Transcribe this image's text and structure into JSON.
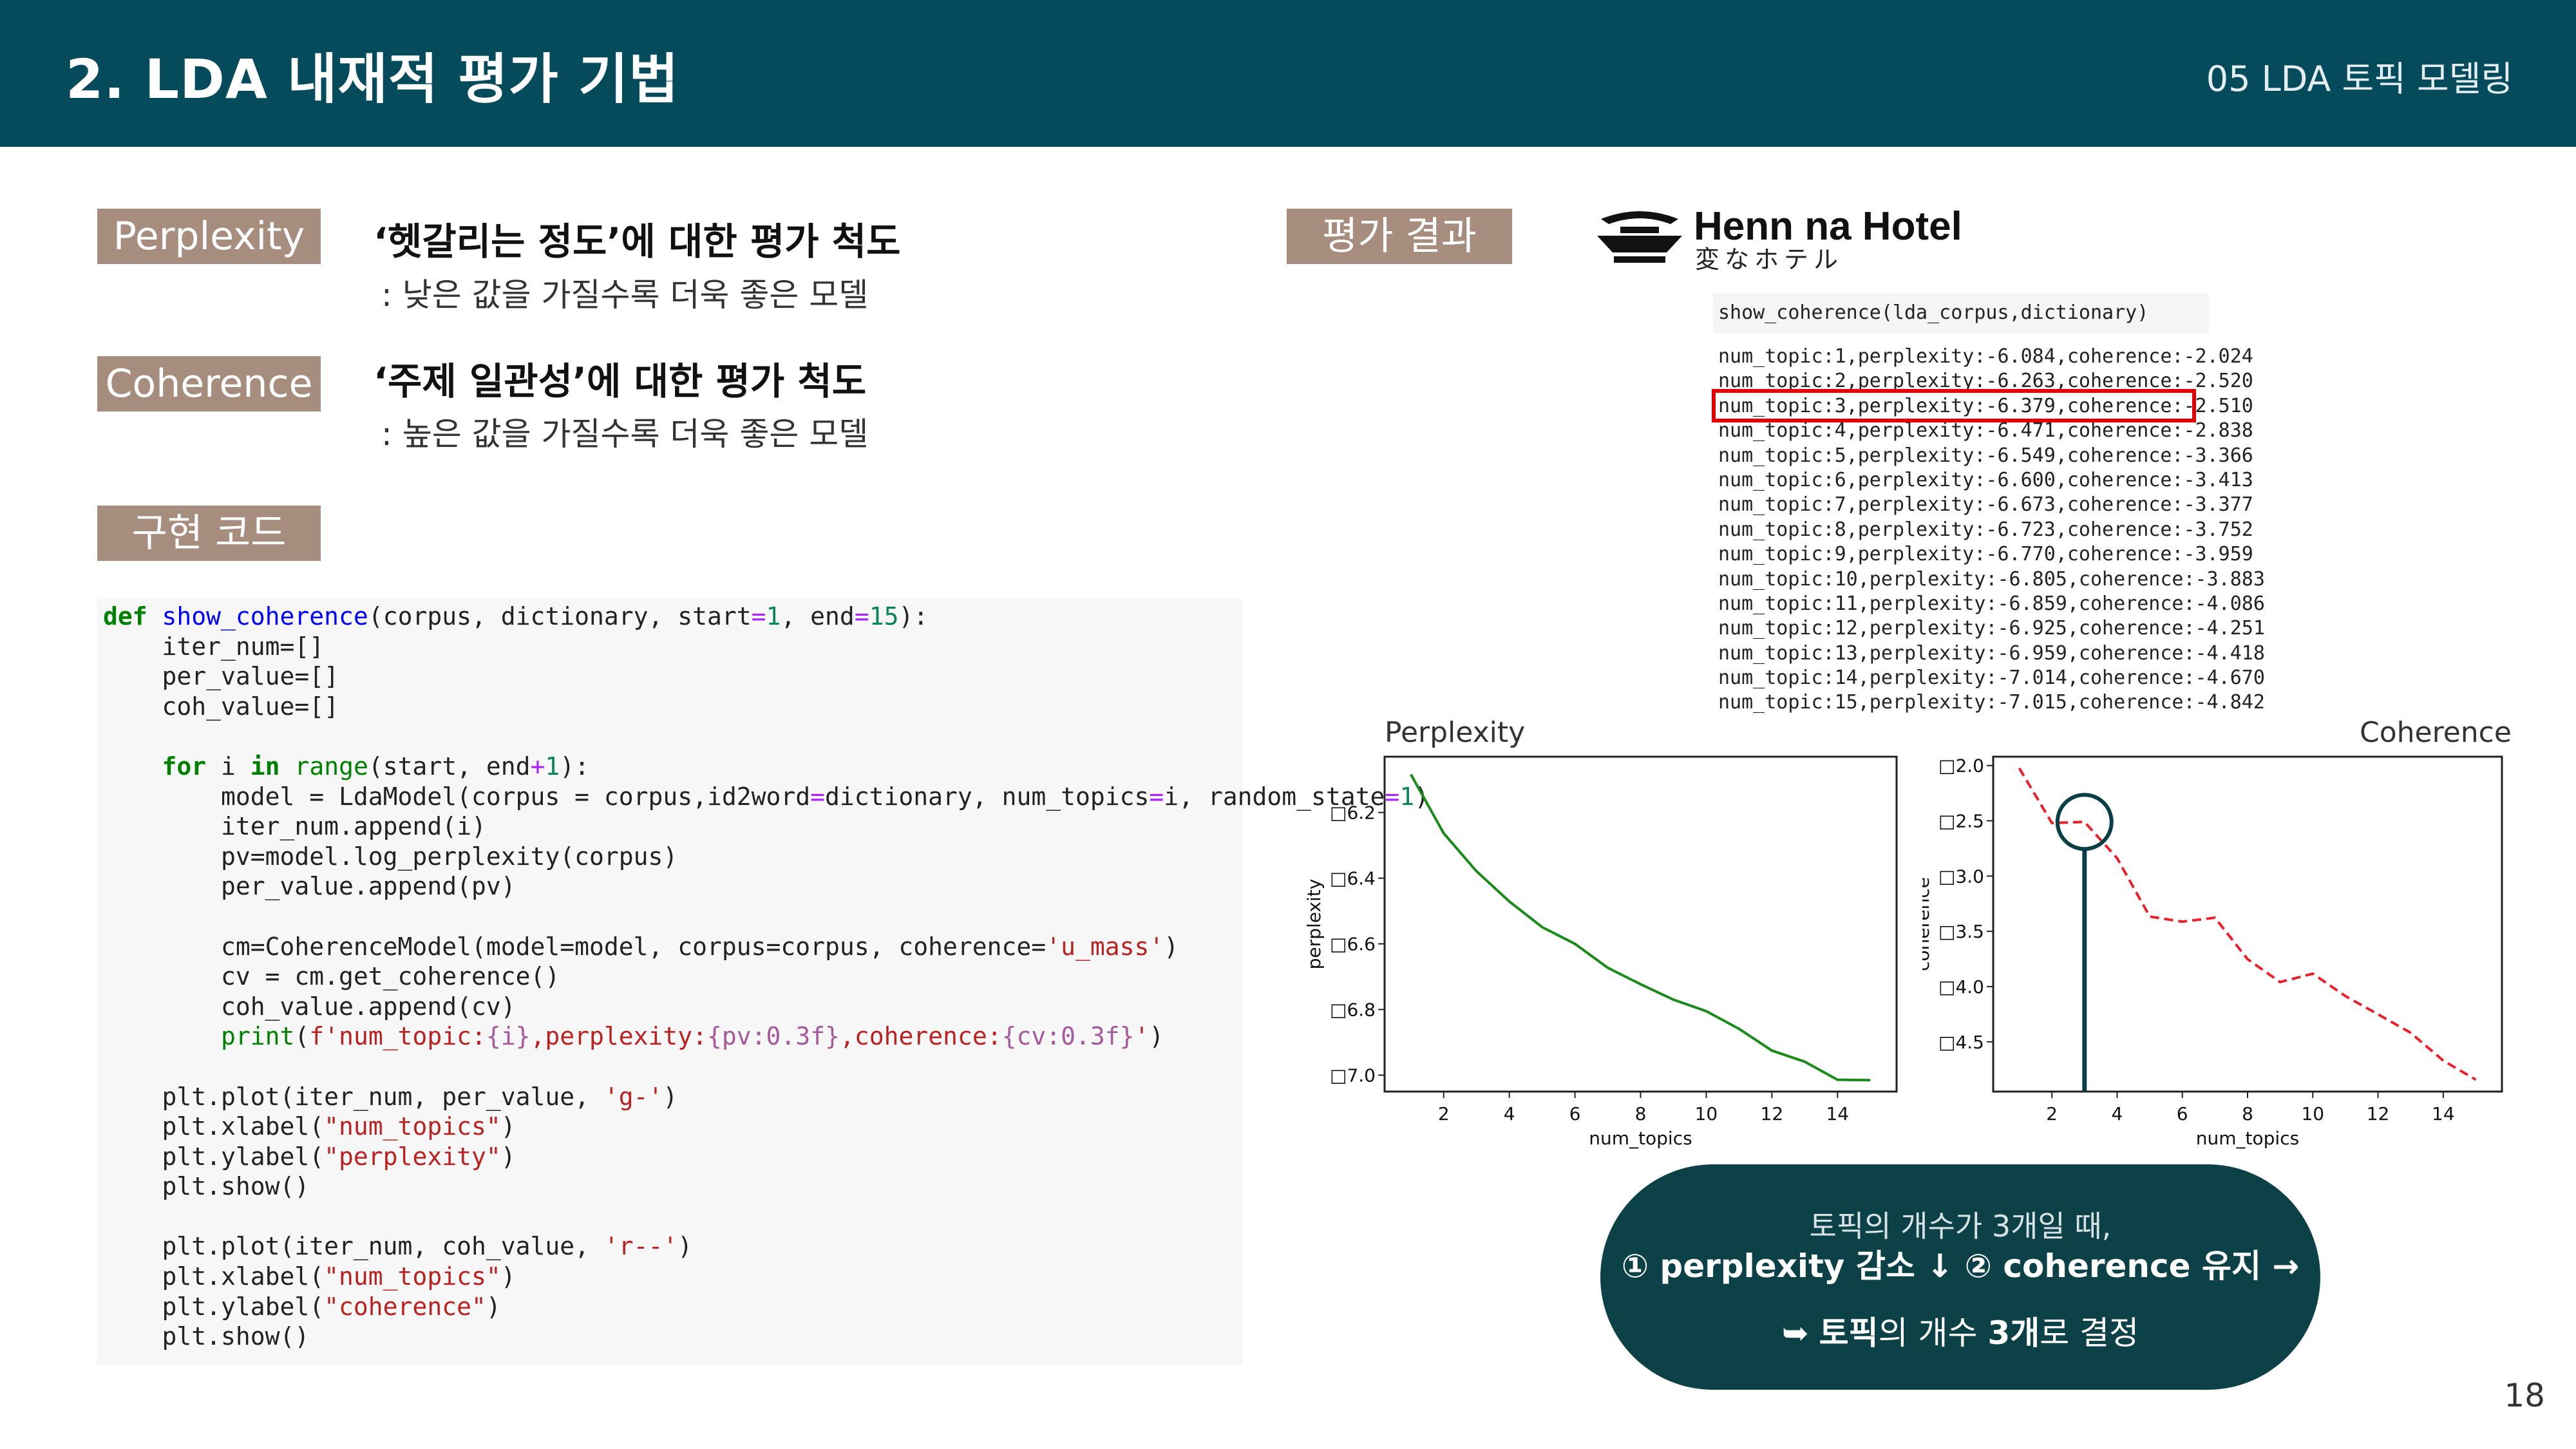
{
  "header": {
    "title": "2. LDA 내재적 평가 기법",
    "section": "05 LDA 토픽 모델링"
  },
  "definitions": {
    "perplexity_label": "Perplexity",
    "perplexity_title": "‘헷갈리는 정도’에 대한 평가 척도",
    "perplexity_desc": ": 낮은 값을 가질수록 더욱 좋은 모델",
    "coherence_label": "Coherence",
    "coherence_title": "‘주제 일관성’에 대한 평가 척도",
    "coherence_desc": ": 높은 값을 가질수록 더욱 좋은 모델",
    "code_label": "구현 코드"
  },
  "code": {
    "l1_def": "def ",
    "l1_fn": "show_coherence",
    "l1_a": "(corpus, dictionary, start",
    "l1_eq1": "=",
    "l1_n1": "1",
    "l1_b": ", end",
    "l1_eq2": "=",
    "l1_n2": "15",
    "l1_c": "):",
    "l2": "    iter_num=[]",
    "l3": "    per_value=[]",
    "l4": "    coh_value=[]",
    "l6_for": "    for",
    "l6_a": " i ",
    "l6_in": "in",
    "l6_sp": " ",
    "l6_range": "range",
    "l6_b": "(start, end",
    "l6_op": "+",
    "l6_n": "1",
    "l6_c": "):",
    "l7_a": "        model = LdaModel(corpus = corpus,id2word",
    "l7_eq": "=",
    "l7_b": "dictionary, num_topics",
    "l7_eq2": "=",
    "l7_c": "i, random_state",
    "l7_eq3": "=",
    "l7_n": "1",
    "l7_d": ")",
    "l8": "        iter_num.append(i)",
    "l9": "        pv=model.log_perplexity(corpus)",
    "l10": "        per_value.append(pv)",
    "l12_a": "        cm=CoherenceModel(model=model, corpus=corpus, coherence=",
    "l12_s": "'u_mass'",
    "l12_b": ")",
    "l13": "        cv = cm.get_coherence()",
    "l14": "        coh_value.append(cv)",
    "l15_p": "        print",
    "l15_a": "(",
    "l15_s1": "f'num_topic:",
    "l15_v1": "{i}",
    "l15_s2": ",perplexity:",
    "l15_v2": "{pv:0.3f}",
    "l15_s3": ",coherence:",
    "l15_v3": "{cv:0.3f}",
    "l15_s4": "'",
    "l15_b": ")",
    "l17_a": "    plt.plot(iter_num, per_value, ",
    "l17_s": "'g-'",
    "l17_b": ")",
    "l18_a": "    plt.xlabel(",
    "l18_s": "\"num_topics\"",
    "l18_b": ")",
    "l19_a": "    plt.ylabel(",
    "l19_s": "\"perplexity\"",
    "l19_b": ")",
    "l20": "    plt.show()",
    "l22_a": "    plt.plot(iter_num, coh_value, ",
    "l22_s": "'r--'",
    "l22_b": ")",
    "l23_a": "    plt.xlabel(",
    "l23_s": "\"num_topics\"",
    "l23_b": ")",
    "l24_a": "    plt.ylabel(",
    "l24_s": "\"coherence\"",
    "l24_b": ")",
    "l25": "    plt.show()"
  },
  "results": {
    "label": "평가 결과",
    "hotel_name": "Henn na Hotel",
    "hotel_jp": "変なホテル",
    "command": "show_coherence(lda_corpus,dictionary)",
    "lines": [
      "num_topic:1,perplexity:-6.084,coherence:-2.024",
      "num_topic:2,perplexity:-6.263,coherence:-2.520",
      "num_topic:3,perplexity:-6.379,coherence:-2.510",
      "num_topic:4,perplexity:-6.471,coherence:-2.838",
      "num_topic:5,perplexity:-6.549,coherence:-3.366",
      "num_topic:6,perplexity:-6.600,coherence:-3.413",
      "num_topic:7,perplexity:-6.673,coherence:-3.377",
      "num_topic:8,perplexity:-6.723,coherence:-3.752",
      "num_topic:9,perplexity:-6.770,coherence:-3.959",
      "num_topic:10,perplexity:-6.805,coherence:-3.883",
      "num_topic:11,perplexity:-6.859,coherence:-4.086",
      "num_topic:12,perplexity:-6.925,coherence:-4.251",
      "num_topic:13,perplexity:-6.959,coherence:-4.418",
      "num_topic:14,perplexity:-7.014,coherence:-4.670",
      "num_topic:15,perplexity:-7.015,coherence:-4.842"
    ]
  },
  "chart_data": [
    {
      "type": "line",
      "title": "Perplexity",
      "xlabel": "num_topics",
      "ylabel": "perplexity",
      "x": [
        1,
        2,
        3,
        4,
        5,
        6,
        7,
        8,
        9,
        10,
        11,
        12,
        13,
        14,
        15
      ],
      "values": [
        -6.084,
        -6.263,
        -6.379,
        -6.471,
        -6.549,
        -6.6,
        -6.673,
        -6.723,
        -6.77,
        -6.805,
        -6.859,
        -6.925,
        -6.959,
        -7.014,
        -7.015
      ],
      "color": "#1a8a1a",
      "style": "solid",
      "xticks": [
        2,
        4,
        6,
        8,
        10,
        12,
        14
      ],
      "xtick_labels": [
        "2",
        "4",
        "6",
        "8",
        "10",
        "12",
        "14"
      ],
      "yticks": [
        -6.2,
        -6.4,
        -6.6,
        -6.8,
        -7.0
      ],
      "ytick_labels": [
        "□6.2",
        "□6.4",
        "□6.6",
        "□6.8",
        "□7.0"
      ],
      "xlim": [
        0.2,
        15.8
      ],
      "ylim": [
        -7.05,
        -6.03
      ],
      "grid": false
    },
    {
      "type": "line",
      "title": "Coherence",
      "xlabel": "num_topics",
      "ylabel": "coherence",
      "x": [
        1,
        2,
        3,
        4,
        5,
        6,
        7,
        8,
        9,
        10,
        11,
        12,
        13,
        14,
        15
      ],
      "values": [
        -2.024,
        -2.52,
        -2.51,
        -2.838,
        -3.366,
        -3.413,
        -3.377,
        -3.752,
        -3.959,
        -3.883,
        -4.086,
        -4.251,
        -4.418,
        -4.67,
        -4.842
      ],
      "color": "#e8202a",
      "style": "dashed",
      "xticks": [
        2,
        4,
        6,
        8,
        10,
        12,
        14
      ],
      "xtick_labels": [
        "2",
        "4",
        "6",
        "8",
        "10",
        "12",
        "14"
      ],
      "yticks": [
        -2.0,
        -2.5,
        -3.0,
        -3.5,
        -4.0,
        -4.5
      ],
      "ytick_labels": [
        "□2.0",
        "□2.5",
        "□3.0",
        "□3.5",
        "□4.0",
        "□4.5"
      ],
      "xlim": [
        0.2,
        15.8
      ],
      "ylim": [
        -4.95,
        -1.92
      ],
      "grid": false,
      "marker_x": 3
    }
  ],
  "callout": {
    "line1": "토픽의 개수가 3개일 때,",
    "line2": "① perplexity 감소 ↓ ② coherence 유지 →",
    "line3_arrow": "➥ ",
    "line3_bold1": "토픽",
    "line3_a": "의 개수 ",
    "line3_bold2": "3개",
    "line3_b": "로 결정"
  },
  "page_number": "18"
}
